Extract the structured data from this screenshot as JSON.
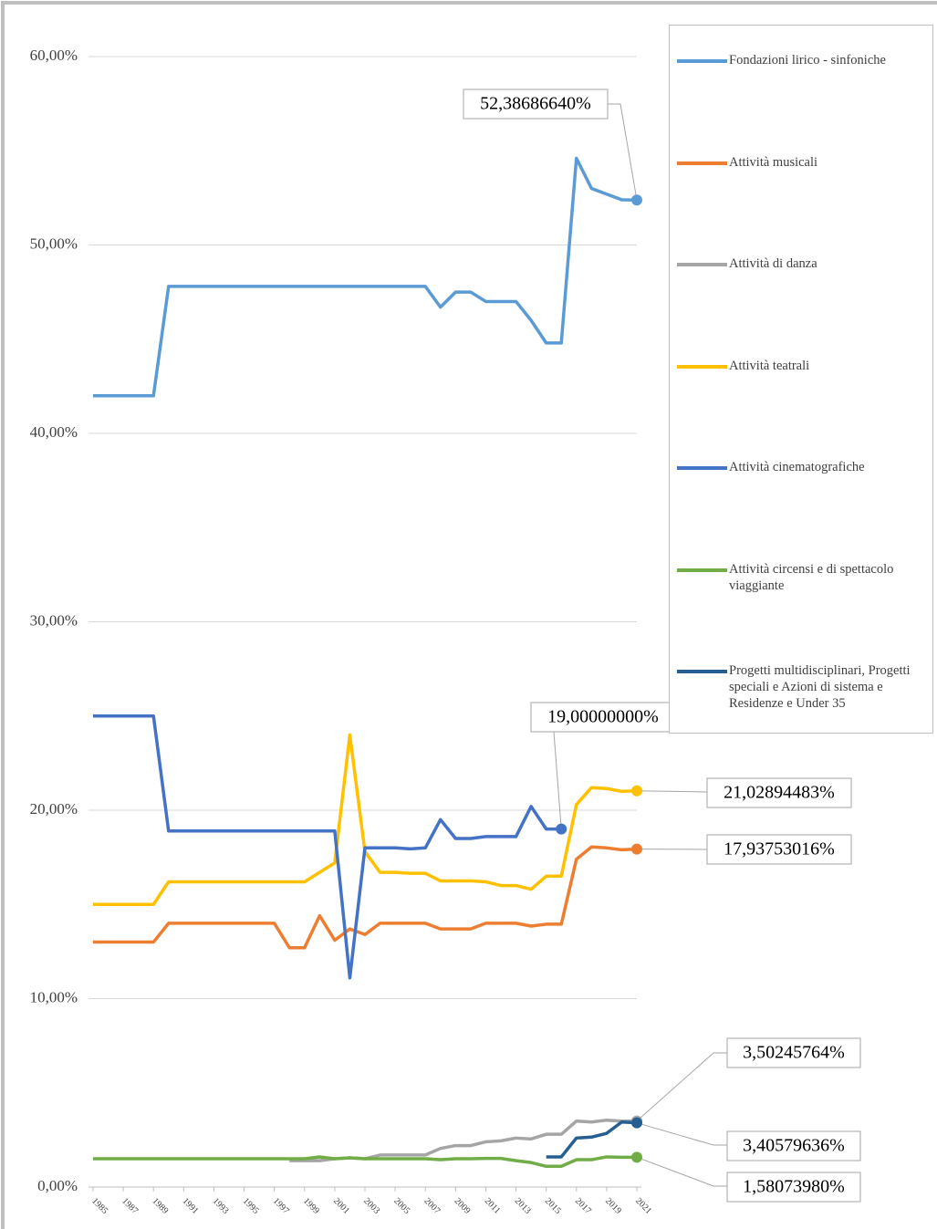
{
  "chart_data": {
    "type": "line",
    "x": [
      1985,
      1986,
      1987,
      1988,
      1989,
      1990,
      1991,
      1992,
      1993,
      1994,
      1995,
      1996,
      1997,
      1998,
      1999,
      2000,
      2001,
      2002,
      2003,
      2004,
      2005,
      2006,
      2007,
      2008,
      2009,
      2010,
      2011,
      2012,
      2013,
      2014,
      2015,
      2016,
      2017,
      2018,
      2019,
      2020,
      2021
    ],
    "xlim": [
      1985,
      2021
    ],
    "xticks": [
      1985,
      1987,
      1989,
      1991,
      1993,
      1995,
      1997,
      1999,
      2001,
      2003,
      2005,
      2007,
      2009,
      2011,
      2013,
      2015,
      2017,
      2019,
      2021
    ],
    "ylim": [
      0,
      60
    ],
    "yticks": [
      {
        "value": 0,
        "label": "0,00%"
      },
      {
        "value": 10,
        "label": "10,00%"
      },
      {
        "value": 20,
        "label": "20,00%"
      },
      {
        "value": 30,
        "label": "30,00%"
      },
      {
        "value": 40,
        "label": "40,00%"
      },
      {
        "value": 50,
        "label": "50,00%"
      },
      {
        "value": 60,
        "label": "60,00%"
      }
    ],
    "grid": true,
    "legend": "right",
    "series": [
      {
        "name": "Fondazioni lirico - sinfoniche",
        "color": "#5b9bd5",
        "values": [
          42,
          42,
          42,
          42,
          42,
          47.8,
          47.8,
          47.8,
          47.8,
          47.8,
          47.8,
          47.8,
          47.8,
          47.8,
          47.8,
          47.8,
          47.8,
          47.8,
          47.8,
          47.8,
          47.8,
          47.8,
          47.8,
          46.7,
          47.5,
          47.5,
          47.0,
          47.0,
          47.0,
          46.0,
          44.8,
          44.8,
          54.6,
          53.0,
          52.7,
          52.4,
          52.3868664
        ],
        "value_labels": [
          null,
          null,
          null,
          null,
          null,
          null,
          null,
          null,
          null,
          null,
          null,
          null,
          null,
          null,
          null,
          null,
          null,
          null,
          null,
          null,
          null,
          null,
          null,
          null,
          null,
          null,
          null,
          null,
          null,
          null,
          null,
          null,
          null,
          null,
          null,
          null,
          "52,38686640%"
        ]
      },
      {
        "name": "Attività musicali",
        "color": "#ed7d31",
        "values": [
          13,
          13,
          13,
          13,
          13,
          14,
          14,
          14,
          14,
          14,
          14,
          14,
          14,
          12.7,
          12.7,
          14.4,
          13.1,
          13.7,
          13.4,
          14,
          14,
          14,
          14,
          13.7,
          13.7,
          13.7,
          14,
          14,
          14,
          13.85,
          13.95,
          13.95,
          17.4,
          18.05,
          18.0,
          17.9,
          17.93753016
        ],
        "value_labels": [
          null,
          null,
          null,
          null,
          null,
          null,
          null,
          null,
          null,
          null,
          null,
          null,
          null,
          null,
          null,
          null,
          null,
          null,
          null,
          null,
          null,
          null,
          null,
          null,
          null,
          null,
          null,
          null,
          null,
          null,
          null,
          null,
          null,
          null,
          null,
          null,
          "17,93753016%"
        ]
      },
      {
        "name": "Attività di danza",
        "color": "#a5a5a5",
        "values": [
          null,
          null,
          null,
          null,
          null,
          null,
          null,
          null,
          null,
          null,
          null,
          null,
          null,
          1.4,
          1.4,
          1.4,
          1.5,
          1.55,
          1.5,
          1.7,
          1.7,
          1.7,
          1.7,
          2.05,
          2.2,
          2.2,
          2.4,
          2.45,
          2.6,
          2.55,
          2.8,
          2.8,
          3.5,
          3.45,
          3.55,
          3.5,
          3.50245764
        ],
        "value_labels": [
          null,
          null,
          null,
          null,
          null,
          null,
          null,
          null,
          null,
          null,
          null,
          null,
          null,
          null,
          null,
          null,
          null,
          null,
          null,
          null,
          null,
          null,
          null,
          null,
          null,
          null,
          null,
          null,
          null,
          null,
          null,
          null,
          null,
          null,
          null,
          null,
          "3,50245764%"
        ]
      },
      {
        "name": "Attività teatrali",
        "color": "#ffc000",
        "values": [
          15,
          15,
          15,
          15,
          15,
          16.2,
          16.2,
          16.2,
          16.2,
          16.2,
          16.2,
          16.2,
          16.2,
          16.2,
          16.2,
          16.7,
          17.2,
          24.0,
          17.8,
          16.7,
          16.7,
          16.65,
          16.65,
          16.25,
          16.25,
          16.25,
          16.2,
          16.0,
          16.0,
          15.8,
          16.5,
          16.5,
          20.3,
          21.2,
          21.15,
          21.0,
          21.02894483
        ],
        "value_labels": [
          null,
          null,
          null,
          null,
          null,
          null,
          null,
          null,
          null,
          null,
          null,
          null,
          null,
          null,
          null,
          null,
          null,
          null,
          null,
          null,
          null,
          null,
          null,
          null,
          null,
          null,
          null,
          null,
          null,
          null,
          null,
          null,
          null,
          null,
          null,
          null,
          "21,02894483%"
        ]
      },
      {
        "name": "Attività cinematografiche",
        "color": "#4472c4",
        "values": [
          25,
          25,
          25,
          25,
          25,
          18.9,
          18.9,
          18.9,
          18.9,
          18.9,
          18.9,
          18.9,
          18.9,
          18.9,
          18.9,
          18.9,
          18.9,
          11.1,
          18.0,
          18.0,
          18.0,
          17.95,
          18.0,
          19.5,
          18.5,
          18.5,
          18.6,
          18.6,
          18.6,
          20.2,
          19.0,
          19.0,
          null,
          null,
          null,
          null,
          null
        ],
        "value_labels": [
          null,
          null,
          null,
          null,
          null,
          null,
          null,
          null,
          null,
          null,
          null,
          null,
          null,
          null,
          null,
          null,
          null,
          null,
          null,
          null,
          null,
          null,
          null,
          null,
          null,
          null,
          null,
          null,
          null,
          null,
          null,
          "19,00000000%",
          null,
          null,
          null,
          null,
          null
        ]
      },
      {
        "name": "Attività circensi e di spettacolo viaggiante",
        "color": "#70ad47",
        "values": [
          1.5,
          1.5,
          1.5,
          1.5,
          1.5,
          1.5,
          1.5,
          1.5,
          1.5,
          1.5,
          1.5,
          1.5,
          1.5,
          1.5,
          1.5,
          1.6,
          1.5,
          1.55,
          1.5,
          1.5,
          1.5,
          1.5,
          1.5,
          1.45,
          1.5,
          1.5,
          1.52,
          1.52,
          1.4,
          1.3,
          1.1,
          1.1,
          1.45,
          1.45,
          1.6,
          1.58,
          1.5807398
        ],
        "value_labels": [
          null,
          null,
          null,
          null,
          null,
          null,
          null,
          null,
          null,
          null,
          null,
          null,
          null,
          null,
          null,
          null,
          null,
          null,
          null,
          null,
          null,
          null,
          null,
          null,
          null,
          null,
          null,
          null,
          null,
          null,
          null,
          null,
          null,
          null,
          null,
          null,
          "1,58073980%"
        ]
      },
      {
        "name": "Progetti multidisciplinari, Progetti speciali e Azioni di sistema e Residenze e Under 35",
        "color": "#255e91",
        "values": [
          null,
          null,
          null,
          null,
          null,
          null,
          null,
          null,
          null,
          null,
          null,
          null,
          null,
          null,
          null,
          null,
          null,
          null,
          null,
          null,
          null,
          null,
          null,
          null,
          null,
          null,
          null,
          null,
          null,
          null,
          1.6,
          1.6,
          2.6,
          2.65,
          2.85,
          3.45,
          3.40579636
        ],
        "value_labels": [
          null,
          null,
          null,
          null,
          null,
          null,
          null,
          null,
          null,
          null,
          null,
          null,
          null,
          null,
          null,
          null,
          null,
          null,
          null,
          null,
          null,
          null,
          null,
          null,
          null,
          null,
          null,
          null,
          null,
          null,
          null,
          null,
          null,
          null,
          null,
          null,
          "3,40579636%"
        ]
      }
    ]
  }
}
